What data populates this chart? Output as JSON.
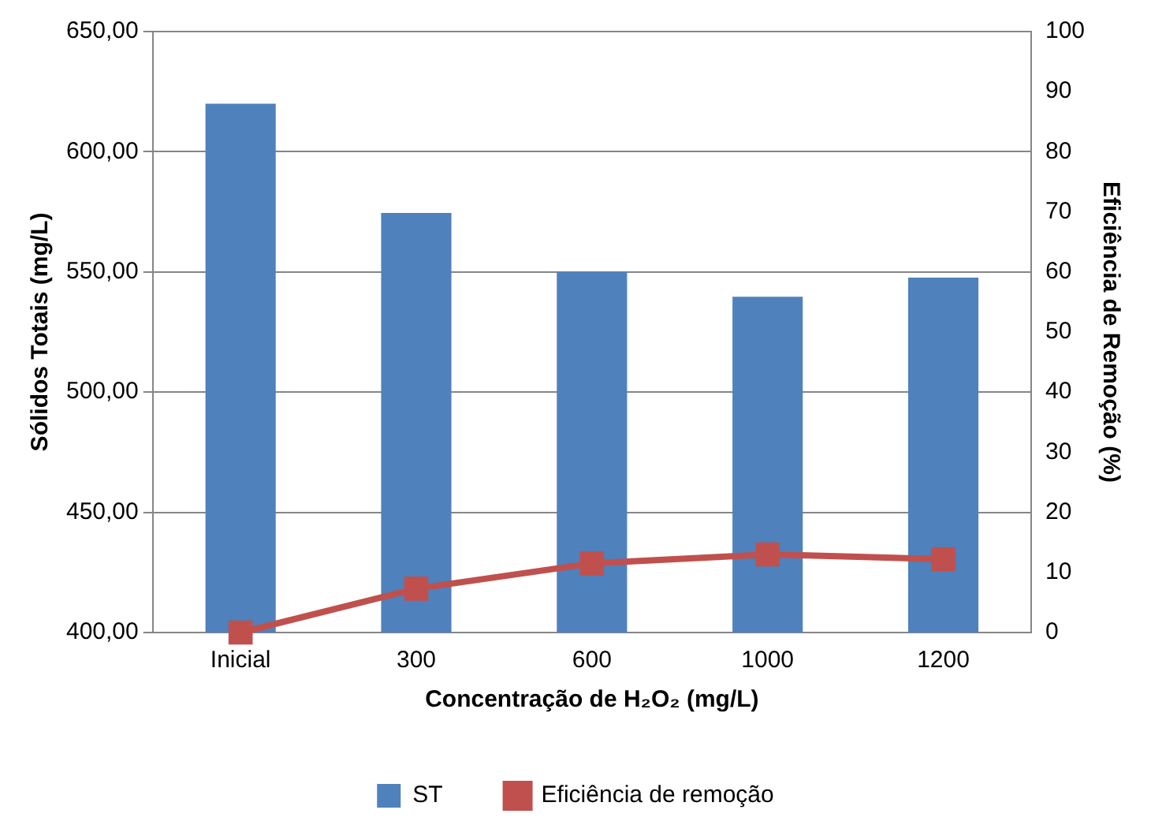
{
  "chart_data": {
    "type": "bar",
    "xlabel": "Concentração de H₂O₂ (mg/L)",
    "ylabel": "Sólidos Totais (mg/L)",
    "y2label": "Eficiência de Remoção (%)",
    "categories": [
      "Inicial",
      "300",
      "600",
      "1000",
      "1200"
    ],
    "series": [
      {
        "name": "ST",
        "color": "#4f81bd",
        "values": [
          620,
          574.5,
          550,
          539.7,
          547.6
        ]
      },
      {
        "name": "Eficiência de remoção",
        "type": "line",
        "axis": "y2",
        "color": "#c0504d",
        "marker": "square",
        "values": [
          0,
          7.3,
          11.5,
          13,
          12.2
        ]
      }
    ],
    "ylim": [
      400,
      650
    ],
    "yticks": [
      {
        "value": 400,
        "label": "400,00"
      },
      {
        "value": 450,
        "label": "450,00"
      },
      {
        "value": 500,
        "label": "500,00"
      },
      {
        "value": 550,
        "label": "550,00"
      },
      {
        "value": 600,
        "label": "600,00"
      },
      {
        "value": 650,
        "label": "650,00"
      }
    ],
    "y2lim": [
      0,
      100
    ],
    "y2ticks": [
      0,
      10,
      20,
      30,
      40,
      50,
      60,
      70,
      80,
      90,
      100
    ],
    "grid": "y",
    "legend": "bottom"
  }
}
